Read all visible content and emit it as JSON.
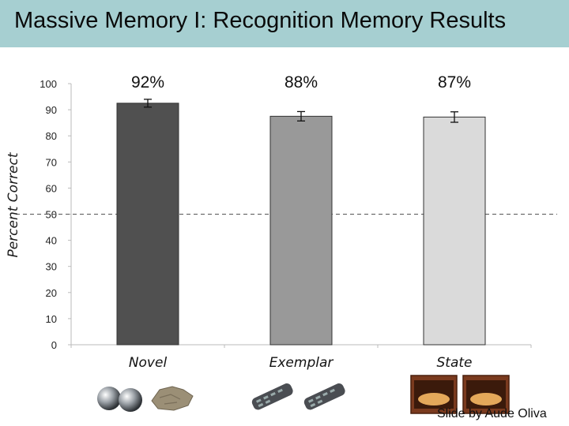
{
  "header": {
    "title": "Massive Memory I: Recognition Memory Results"
  },
  "chart_data": {
    "type": "bar",
    "categories": [
      "Novel",
      "Exemplar",
      "State"
    ],
    "values": [
      92.5,
      87.5,
      87.2
    ],
    "error": [
      1.5,
      1.8,
      2.0
    ],
    "data_labels": [
      "92%",
      "88%",
      "87%"
    ],
    "bar_colors": [
      "#505050",
      "#999999",
      "#dadada"
    ],
    "ylabel": "Percent Correct",
    "ylim": [
      0,
      100
    ],
    "yticks": [
      0,
      10,
      20,
      30,
      40,
      50,
      60,
      70,
      80,
      90,
      100
    ],
    "reference_line": 50,
    "grid": false
  },
  "credit": "Slide by Aude Oliva",
  "icons": [
    "steel-balls-icon",
    "stone-icon",
    "remote-control-icon",
    "remote-control-icon",
    "bread-box-open-icon",
    "bread-box-closed-icon"
  ]
}
